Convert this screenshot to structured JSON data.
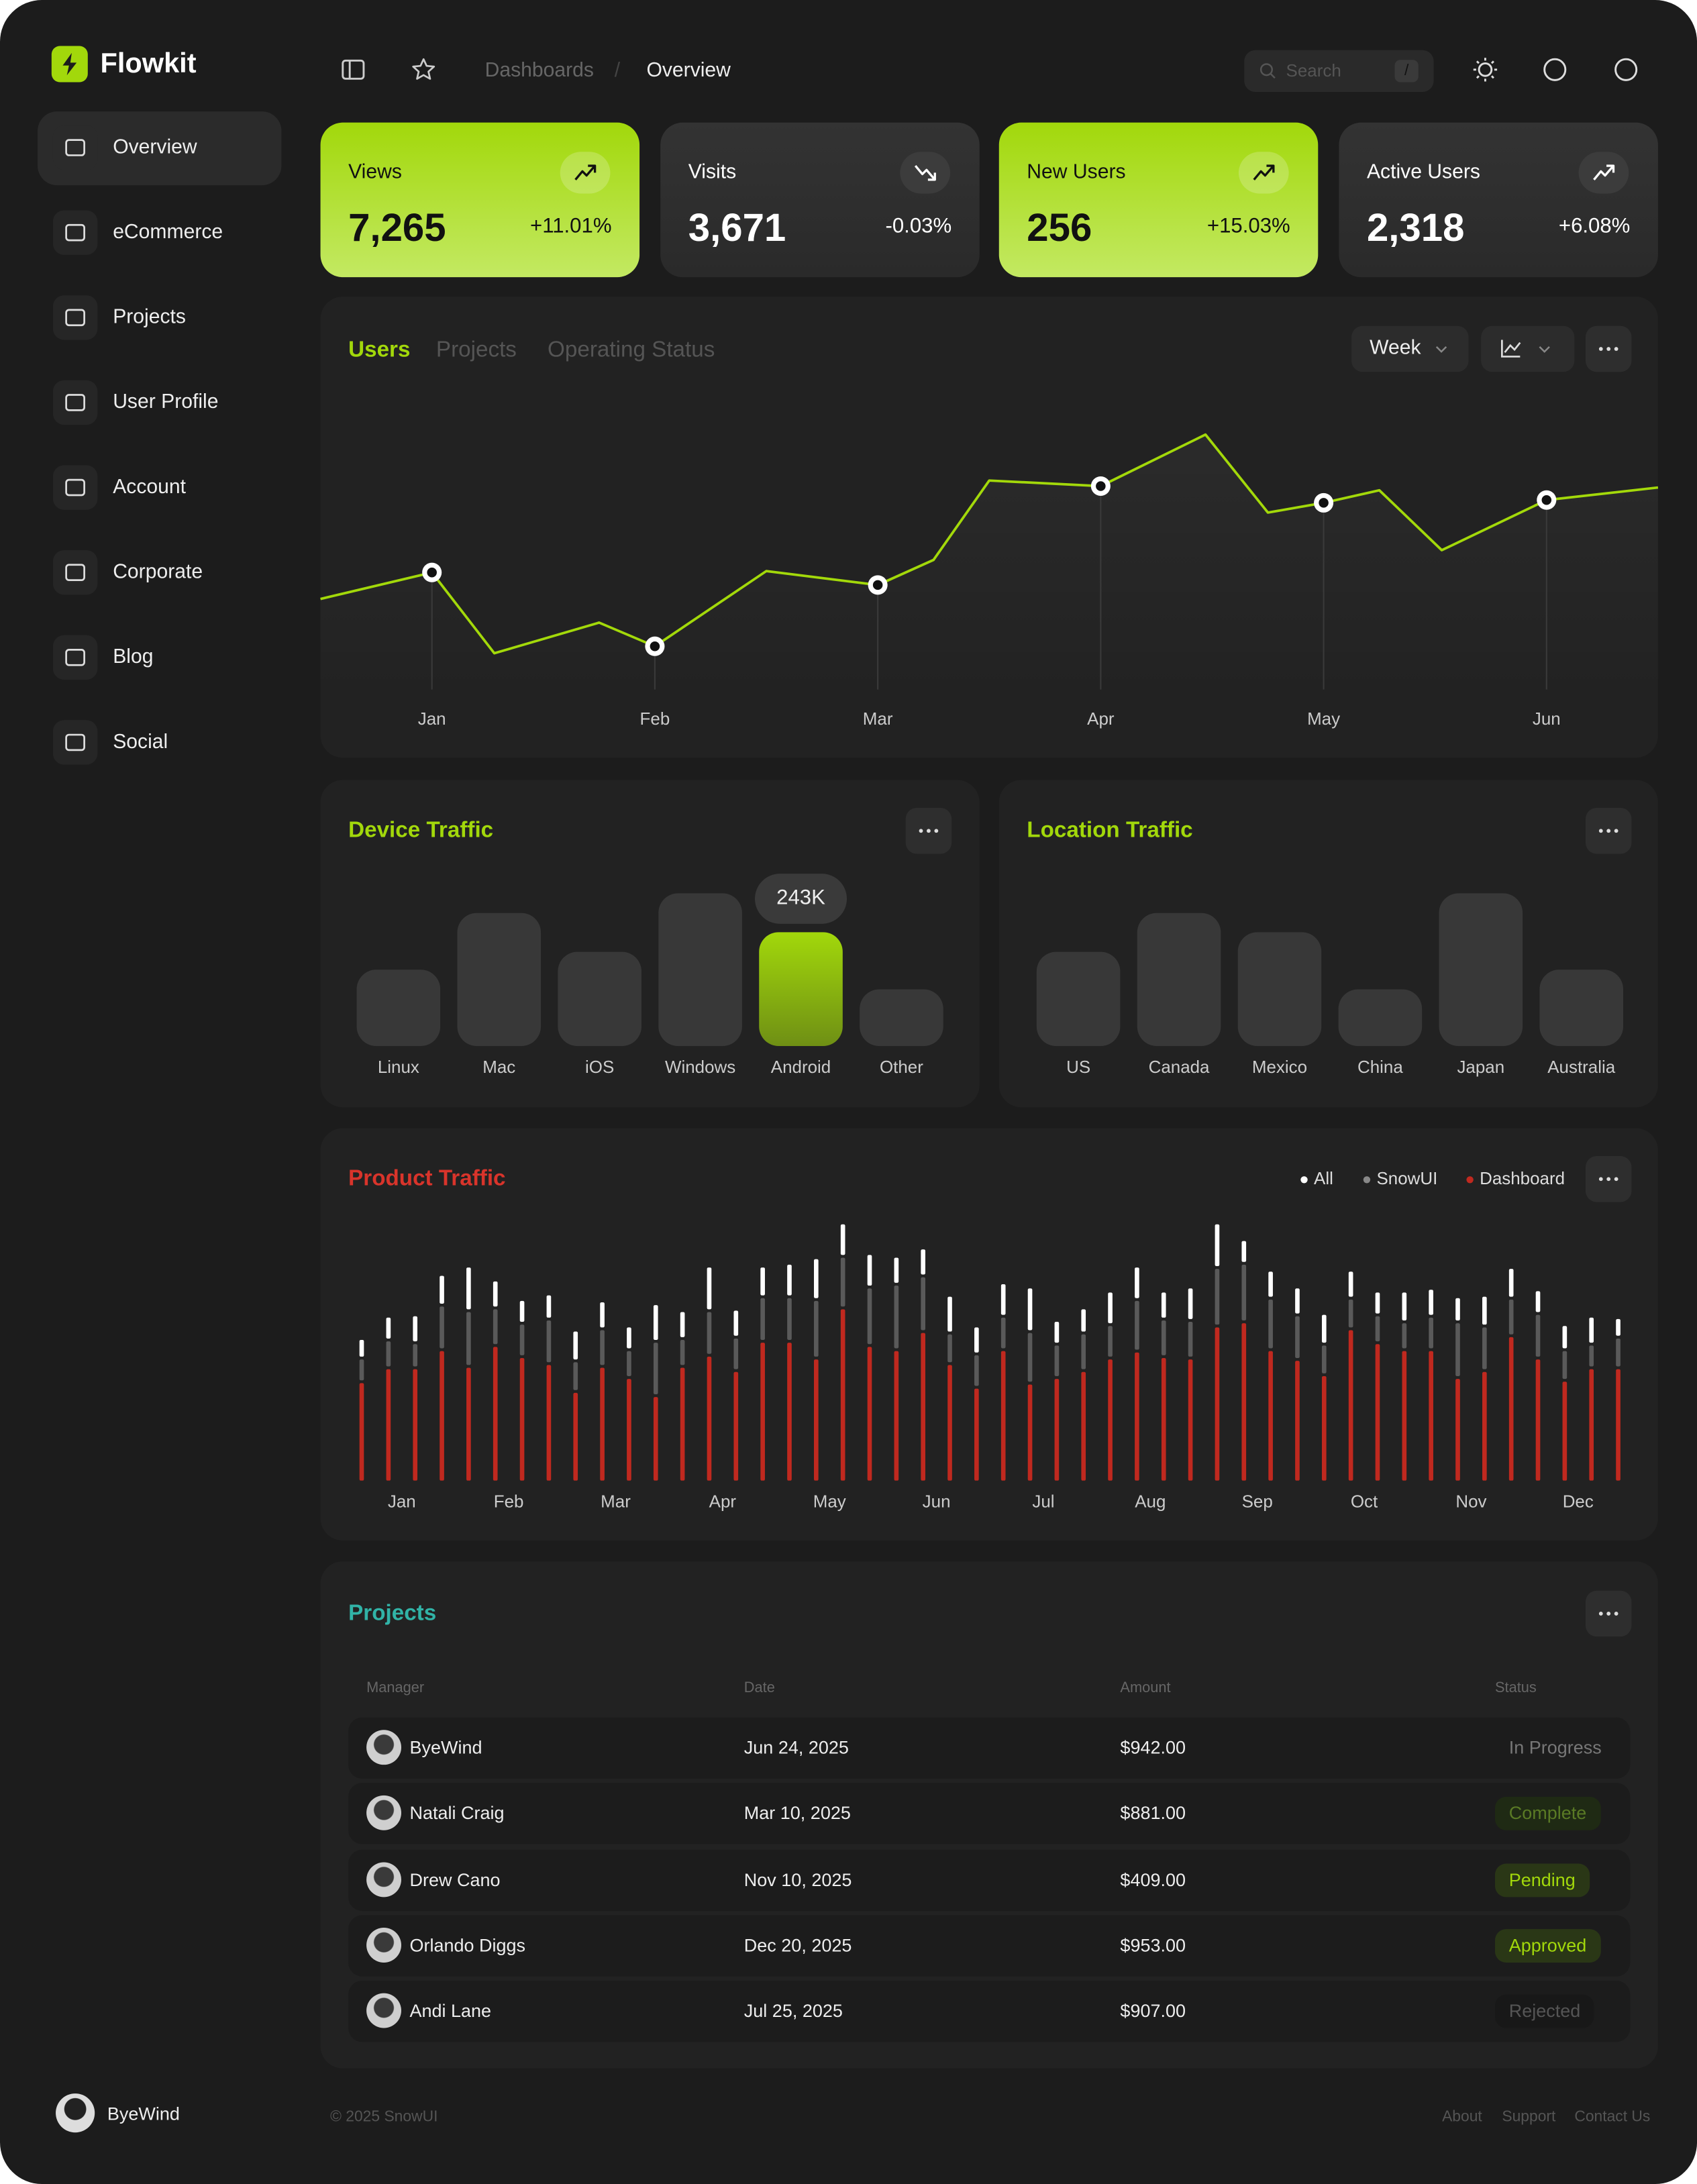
{
  "sidebar": {
    "brand": "Flowkit",
    "items": [
      "Overview",
      "eCommerce",
      "Projects",
      "User Profile",
      "Account",
      "Corporate",
      "Blog",
      "Social"
    ],
    "user": "ByeWind"
  },
  "header": {
    "breadcrumb": [
      "Dashboards",
      "Overview"
    ],
    "separator": "/",
    "search": "Search",
    "search_key": "/"
  },
  "stats": [
    {
      "label": "Views",
      "value": "7,265",
      "change": "+11.01%",
      "color": "#a2d80b"
    },
    {
      "label": "Visits",
      "value": "3,671",
      "change": "-0.03%",
      "color": "#333333"
    },
    {
      "label": "New Users",
      "value": "256",
      "change": "+15.03%",
      "color": "#a2d80b"
    },
    {
      "label": "Active Users",
      "value": "2,318",
      "change": "+6.08%",
      "color": "#333333"
    }
  ],
  "users_panel": {
    "tabs": [
      "Users",
      "Projects",
      "Operating Status"
    ],
    "period": "Week"
  },
  "chart_data": [
    {
      "type": "line",
      "color": "#a3d90a",
      "x": [
        -0.5,
        0,
        0.28,
        0.75,
        1,
        1.5,
        2,
        2.25,
        2.5,
        3,
        3.47,
        3.75,
        4,
        4.25,
        4.53,
        5,
        5.5
      ],
      "values": [
        90,
        109,
        51,
        73,
        56,
        110,
        100,
        118,
        175,
        171,
        208,
        152,
        159,
        168,
        125,
        161,
        170
      ],
      "xlim": [
        -0.5,
        5.5
      ],
      "ylim": [
        0,
        230
      ],
      "xticks": [
        {
          "value": 0,
          "label": "Jan"
        },
        {
          "value": 1,
          "label": "Feb"
        },
        {
          "value": 2,
          "label": "Mar"
        },
        {
          "value": 3,
          "label": "Apr"
        },
        {
          "value": 4,
          "label": "May"
        },
        {
          "value": 5,
          "label": "Jun"
        }
      ]
    },
    {
      "type": "bar",
      "title": "Device Traffic",
      "categories": [
        "Linux",
        "Mac",
        "iOS",
        "Windows",
        "Android",
        "Other"
      ],
      "values": [
        163000,
        284000,
        201000,
        326000,
        243000,
        121000
      ],
      "value_labels": [
        null,
        null,
        null,
        null,
        "243K",
        null
      ],
      "color": "#383838",
      "highlight_color": "#a2d80b",
      "ylim": [
        0,
        330000
      ]
    },
    {
      "type": "bar",
      "title": "Location Traffic",
      "categories": [
        "US",
        "Canada",
        "Mexico",
        "China",
        "Japan",
        "Australia"
      ],
      "values": [
        201000,
        284000,
        243000,
        121000,
        326000,
        163000
      ],
      "color": "#383838",
      "ylim": [
        0,
        330000
      ]
    },
    {
      "type": "stacked-bar",
      "title": "Product Traffic",
      "x": [
        0,
        1,
        2,
        3,
        4,
        5,
        6,
        7,
        8,
        9,
        10,
        11,
        12,
        13,
        14,
        15,
        16,
        17,
        18,
        19,
        20,
        21,
        22,
        23,
        24,
        25,
        26,
        27,
        28,
        29,
        30,
        31,
        32,
        33,
        34,
        35,
        36,
        37,
        38,
        39,
        40,
        41,
        42,
        43,
        44,
        45,
        46,
        47
      ],
      "xlim": [
        -0.5,
        47.5
      ],
      "ylim": [
        0,
        190
      ],
      "xticks": [
        {
          "value": 1.5,
          "label": "Jan"
        },
        {
          "value": 5.5,
          "label": "Feb"
        },
        {
          "value": 9.5,
          "label": "Mar"
        },
        {
          "value": 13.5,
          "label": "Apr"
        },
        {
          "value": 17.5,
          "label": "May"
        },
        {
          "value": 21.5,
          "label": "Jun"
        },
        {
          "value": 25.5,
          "label": "Jul"
        },
        {
          "value": 29.5,
          "label": "Aug"
        },
        {
          "value": 33.5,
          "label": "Sep"
        },
        {
          "value": 37.5,
          "label": "Oct"
        },
        {
          "value": 41.5,
          "label": "Nov"
        },
        {
          "value": 45.5,
          "label": "Dec"
        }
      ],
      "series": [
        {
          "name": "All",
          "color": "#ffffff",
          "values": [
            12,
            15,
            18,
            20,
            30,
            18,
            15,
            16,
            20,
            18,
            15,
            25,
            18,
            30,
            18,
            20,
            22,
            28,
            22,
            22,
            18,
            18,
            25,
            18,
            22,
            30,
            15,
            16,
            22,
            22,
            18,
            22,
            30,
            15,
            18,
            18,
            20,
            18,
            15,
            20,
            18,
            16,
            20,
            20,
            15,
            16,
            18,
            12
          ]
        },
        {
          "name": "SnowUI",
          "color": "#5a5a5a",
          "values": [
            15,
            18,
            16,
            30,
            38,
            25,
            22,
            30,
            20,
            25,
            18,
            37,
            18,
            30,
            22,
            30,
            30,
            40,
            35,
            40,
            45,
            38,
            20,
            22,
            22,
            35,
            22,
            25,
            22,
            35,
            25,
            25,
            40,
            40,
            35,
            30,
            20,
            20,
            18,
            18,
            22,
            38,
            30,
            25,
            30,
            20,
            15,
            20
          ]
        },
        {
          "name": "Dashboard",
          "color": "#c0291f",
          "values": [
            70,
            80,
            80,
            93,
            81,
            96,
            88,
            83,
            63,
            81,
            73,
            60,
            81,
            89,
            78,
            99,
            99,
            87,
            123,
            96,
            93,
            106,
            83,
            66,
            93,
            69,
            73,
            78,
            87,
            92,
            88,
            87,
            110,
            113,
            93,
            86,
            75,
            108,
            98,
            93,
            93,
            73,
            78,
            103,
            87,
            71,
            80,
            80
          ]
        }
      ]
    }
  ],
  "projects": {
    "title": "Projects",
    "columns": [
      "Manager",
      "Date",
      "Amount",
      "Status"
    ],
    "rows": [
      [
        "ByeWind",
        "Jun 24, 2025",
        "$942.00",
        "In Progress"
      ],
      [
        "Natali Craig",
        "Mar 10, 2025",
        "$881.00",
        "Complete"
      ],
      [
        "Drew Cano",
        "Nov 10, 2025",
        "$409.00",
        "Pending"
      ],
      [
        "Orlando Diggs",
        "Dec 20, 2025",
        "$953.00",
        "Approved"
      ],
      [
        "Andi Lane",
        "Jul 25, 2025",
        "$907.00",
        "Rejected"
      ]
    ]
  },
  "footer": {
    "copyright": "© 2025 SnowUI",
    "links": [
      "About",
      "Support",
      "Contact Us"
    ]
  }
}
